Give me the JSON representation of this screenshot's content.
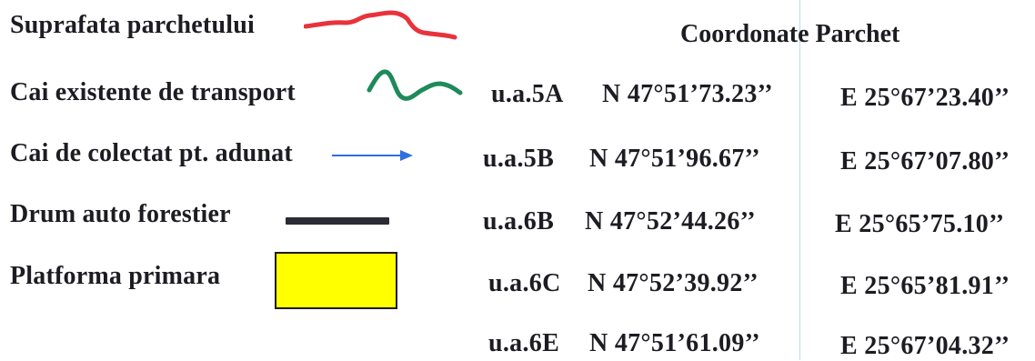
{
  "legend": {
    "items": [
      {
        "label": "Suprafata parchetului",
        "symbol": "red-wavy-line-icon",
        "color": "#e8323c"
      },
      {
        "label": "Cai existente de transport",
        "symbol": "green-wavy-line-icon",
        "color": "#1e8a5c"
      },
      {
        "label": "Cai de colectat pt. adunat",
        "symbol": "blue-arrow-icon",
        "color": "#2f6fe0"
      },
      {
        "label": "Drum auto forestier",
        "symbol": "black-road-line-icon",
        "color": "#2b2b35"
      },
      {
        "label": "Platforma primara",
        "symbol": "yellow-box-icon",
        "color": "#ffff00"
      }
    ]
  },
  "coordinates": {
    "title": "Coordonate Parchet",
    "rows": [
      {
        "unit": "u.a.5A",
        "north": "N 47°51’73.23’’",
        "east": "E 25°67’23.40’’"
      },
      {
        "unit": "u.a.5B",
        "north": "N 47°51’96.67’’",
        "east": "E 25°67’07.80’’"
      },
      {
        "unit": "u.a.6B",
        "north": "N 47°52’44.26’’",
        "east": "E 25°65’75.10’’"
      },
      {
        "unit": "u.a.6C",
        "north": "N 47°52’39.92’’",
        "east": "E 25°65’81.91’’"
      },
      {
        "unit": "u.a.6E",
        "north": "N 47°51’61.09’’",
        "east": "E 25°67’04.32’’"
      }
    ]
  }
}
